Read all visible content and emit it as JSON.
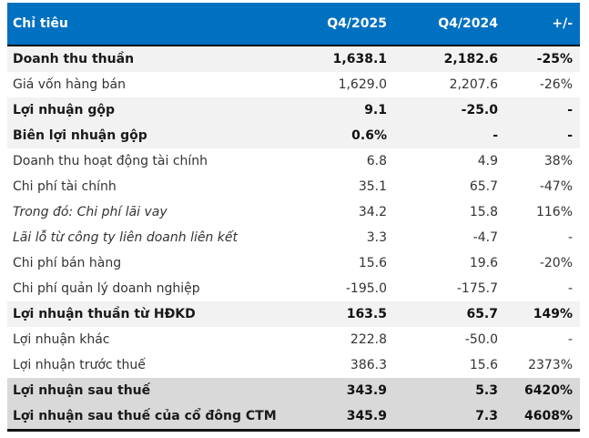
{
  "table": {
    "headers": [
      "Chỉ tiêu",
      "Q4/2025",
      "Q4/2024",
      "+/-"
    ],
    "header_color": "#0070C0",
    "rows": [
      {
        "label": "Doanh thu thuần",
        "q4_2025": "1,638.1",
        "q4_2024": "2,182.6",
        "change": "-25%",
        "style": "bold shade1"
      },
      {
        "label": "Giá vốn hàng bán",
        "q4_2025": "1,629.0",
        "q4_2024": "2,207.6",
        "change": "-26%",
        "style": ""
      },
      {
        "label": "Lợi nhuận gộp",
        "q4_2025": "9.1",
        "q4_2024": "-25.0",
        "change": "-",
        "style": "bold shade1"
      },
      {
        "label": "Biên lợi nhuận gộp",
        "q4_2025": "0.6%",
        "q4_2024": "-",
        "change": "-",
        "style": "bold shade1"
      },
      {
        "label": "Doanh thu hoạt động tài chính",
        "q4_2025": "6.8",
        "q4_2024": "4.9",
        "change": "38%",
        "style": ""
      },
      {
        "label": "Chi phí tài chính",
        "q4_2025": "35.1",
        "q4_2024": "65.7",
        "change": "-47%",
        "style": ""
      },
      {
        "label": "Trong đó: Chi phí lãi vay",
        "q4_2025": "34.2",
        "q4_2024": "15.8",
        "change": "116%",
        "style": "italic"
      },
      {
        "label": "Lãi lỗ từ công ty liên doanh liên kết",
        "q4_2025": "3.3",
        "q4_2024": "-4.7",
        "change": "-",
        "style": "italic"
      },
      {
        "label": "Chi phí bán hàng",
        "q4_2025": "15.6",
        "q4_2024": "19.6",
        "change": "-20%",
        "style": ""
      },
      {
        "label": "Chi phí quản lý doanh nghiệp",
        "q4_2025": "-195.0",
        "q4_2024": "-175.7",
        "change": "-",
        "style": ""
      },
      {
        "label": "Lợi nhuận thuần từ HĐKD",
        "q4_2025": "163.5",
        "q4_2024": "65.7",
        "change": "149%",
        "style": "bold shade1"
      },
      {
        "label": "Lợi nhuận khác",
        "q4_2025": "222.8",
        "q4_2024": "-50.0",
        "change": "-",
        "style": ""
      },
      {
        "label": "Lợi nhuận trước thuế",
        "q4_2025": "386.3",
        "q4_2024": "15.6",
        "change": "2373%",
        "style": ""
      },
      {
        "label": "Lợi nhuận sau thuế",
        "q4_2025": "343.9",
        "q4_2024": "5.3",
        "change": "6420%",
        "style": "bold shade2"
      },
      {
        "label": "Lợi nhuận sau thuế của cổ đông CTM",
        "q4_2025": "345.9",
        "q4_2024": "7.3",
        "change": "4608%",
        "style": "bold shade2"
      }
    ]
  }
}
